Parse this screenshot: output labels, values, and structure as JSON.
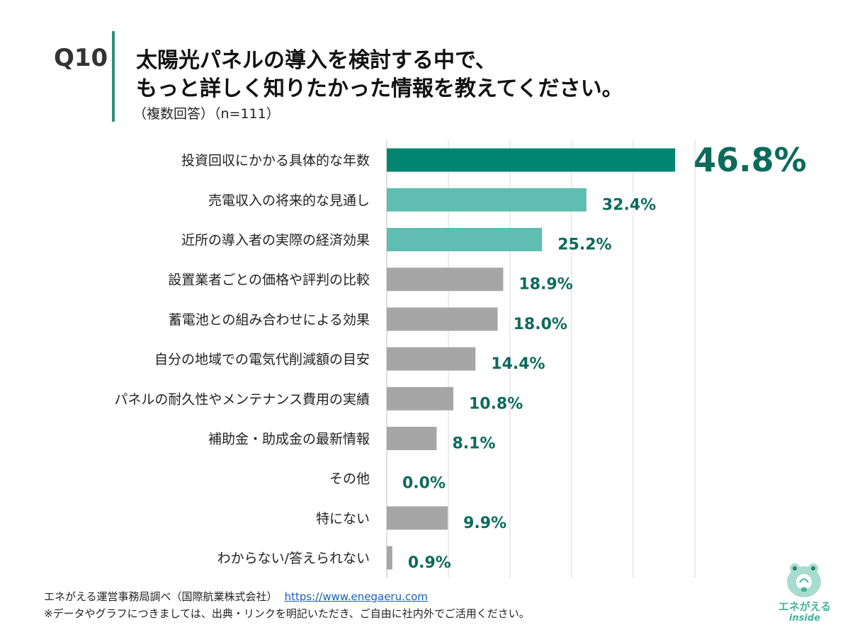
{
  "header": {
    "question_number": "Q10",
    "title_line1": "太陽光パネルの導入を検討する中で、",
    "title_line2": "もっと詳しく知りたかった情報を教えてください。",
    "subtitle": "（複数回答）（n=111）"
  },
  "chart_data": {
    "type": "bar",
    "orientation": "horizontal",
    "categories": [
      "投資回収にかかる具体的な年数",
      "売電収入の将来的な見通し",
      "近所の導入者の実際の経済効果",
      "設置業者ごとの価格や評判の比較",
      "蓄電池との組み合わせによる効果",
      "自分の地域での電気代削減額の目安",
      "パネルの耐久性やメンテナンス費用の実績",
      "補助金・助成金の最新情報",
      "その他",
      "特にない",
      "わからない/答えられない"
    ],
    "values": [
      46.8,
      32.4,
      25.2,
      18.9,
      18.0,
      14.4,
      10.8,
      8.1,
      0.0,
      9.9,
      0.9
    ],
    "value_labels": [
      "46.8%",
      "32.4%",
      "25.2%",
      "18.9%",
      "18.0%",
      "14.4%",
      "10.8%",
      "8.1%",
      "0.0%",
      "9.9%",
      "0.9%"
    ],
    "bar_colors": [
      "#008570",
      "#5fbdb1",
      "#5fbdb1",
      "#a6a6a6",
      "#a6a6a6",
      "#a6a6a6",
      "#a6a6a6",
      "#a6a6a6",
      "#a6a6a6",
      "#a6a6a6",
      "#a6a6a6"
    ],
    "label_color": "#0b6b5c",
    "xlim": [
      0,
      50
    ],
    "grid": true,
    "grid_color": "#d9d9d9"
  },
  "footer": {
    "source_text": "エネがえる運営事務局調べ（国際航業株式会社）",
    "source_url": "https://www.enegaeru.com",
    "note": "※データやグラフにつきましては、出典・リンクを明記いただき、ご自由に社内外でご活用ください。"
  },
  "logo": {
    "name": "エネがえる",
    "sub": "inside",
    "icon": "frog-lightbulb-icon",
    "color": "#44b39b"
  }
}
